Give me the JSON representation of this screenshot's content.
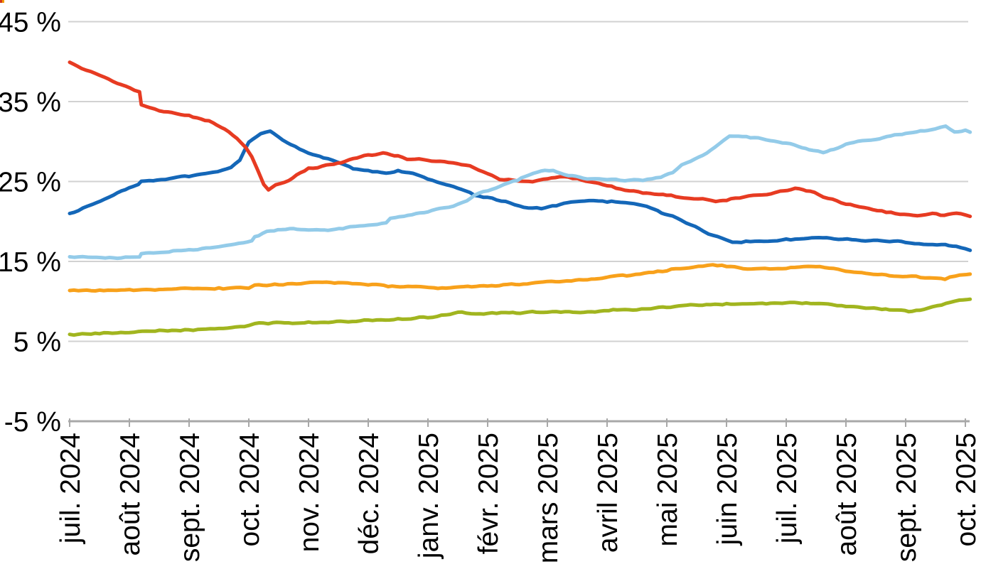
{
  "chart_data": {
    "type": "line",
    "title": "",
    "x_tick_labels": [
      "juil. 2024",
      "août 2024",
      "sept. 2024",
      "oct. 2024",
      "nov. 2024",
      "déc. 2024",
      "janv. 2025",
      "févr. 2025",
      "mars 2025",
      "avril 2025",
      "mai 2025",
      "juin 2025",
      "juil. 2025",
      "août 2025",
      "sept. 2025",
      "oct. 2025"
    ],
    "y_tick_labels": [
      "45 %",
      "35 %",
      "25 %",
      "15 %",
      "5 %",
      "-5 %"
    ],
    "y_tick_values": [
      45,
      35,
      25,
      15,
      5,
      -5
    ],
    "ylim": [
      -5,
      45
    ],
    "x_range_months": [
      0,
      15.08
    ],
    "grid": "horizontal-only",
    "legend_position": "none",
    "label_color": "#000000",
    "gridline_color": "#d2d2d2",
    "axis_color": "#a8a8a8",
    "background_color": "#ffffff",
    "series": [
      {
        "name": "series-olive-green",
        "color": "#a1b51f",
        "points": [
          [
            0,
            5.8
          ],
          [
            0.5,
            6.0
          ],
          [
            1.0,
            6.1
          ],
          [
            1.5,
            6.3
          ],
          [
            2.0,
            6.4
          ],
          [
            2.5,
            6.6
          ],
          [
            3.0,
            6.9
          ],
          [
            3.1,
            7.2
          ],
          [
            3.4,
            7.3
          ],
          [
            3.8,
            7.3
          ],
          [
            4.2,
            7.4
          ],
          [
            4.6,
            7.5
          ],
          [
            5.0,
            7.6
          ],
          [
            5.5,
            7.8
          ],
          [
            6.0,
            8.0
          ],
          [
            6.3,
            8.3
          ],
          [
            6.57,
            8.7
          ],
          [
            6.8,
            8.4
          ],
          [
            7.0,
            8.5
          ],
          [
            7.3,
            8.6
          ],
          [
            7.55,
            8.5
          ],
          [
            7.75,
            8.7
          ],
          [
            8.0,
            8.6
          ],
          [
            8.3,
            8.7
          ],
          [
            8.55,
            8.6
          ],
          [
            8.8,
            8.7
          ],
          [
            9.1,
            8.9
          ],
          [
            9.5,
            9.0
          ],
          [
            9.8,
            9.2
          ],
          [
            10.0,
            9.3
          ],
          [
            10.4,
            9.5
          ],
          [
            10.8,
            9.6
          ],
          [
            11.2,
            9.65
          ],
          [
            11.6,
            9.7
          ],
          [
            12.0,
            9.8
          ],
          [
            12.4,
            9.75
          ],
          [
            12.7,
            9.6
          ],
          [
            13.0,
            9.4
          ],
          [
            13.4,
            9.15
          ],
          [
            13.8,
            8.95
          ],
          [
            14.05,
            8.7
          ],
          [
            14.3,
            9.0
          ],
          [
            14.6,
            9.6
          ],
          [
            14.9,
            10.2
          ],
          [
            15.08,
            10.35
          ]
        ]
      },
      {
        "name": "series-orange",
        "color": "#f8a11b",
        "points": [
          [
            0,
            11.3
          ],
          [
            0.5,
            11.4
          ],
          [
            1.0,
            11.4
          ],
          [
            1.5,
            11.5
          ],
          [
            2.0,
            11.6
          ],
          [
            2.5,
            11.6
          ],
          [
            3.0,
            11.7
          ],
          [
            3.1,
            12.0
          ],
          [
            3.5,
            12.1
          ],
          [
            3.8,
            12.2
          ],
          [
            4.1,
            12.4
          ],
          [
            4.5,
            12.3
          ],
          [
            4.8,
            12.2
          ],
          [
            5.0,
            12.1
          ],
          [
            5.4,
            11.9
          ],
          [
            5.8,
            11.8
          ],
          [
            6.1,
            11.75
          ],
          [
            6.3,
            11.65
          ],
          [
            6.6,
            11.8
          ],
          [
            7.0,
            11.9
          ],
          [
            7.4,
            12.1
          ],
          [
            7.8,
            12.3
          ],
          [
            8.0,
            12.4
          ],
          [
            8.4,
            12.6
          ],
          [
            8.8,
            12.8
          ],
          [
            9.05,
            13.1
          ],
          [
            9.4,
            13.3
          ],
          [
            9.7,
            13.6
          ],
          [
            10.0,
            13.9
          ],
          [
            10.3,
            14.2
          ],
          [
            10.6,
            14.4
          ],
          [
            10.77,
            14.6
          ],
          [
            11.0,
            14.4
          ],
          [
            11.2,
            14.2
          ],
          [
            11.5,
            14.0
          ],
          [
            11.8,
            14.1
          ],
          [
            12.0,
            14.2
          ],
          [
            12.3,
            14.3
          ],
          [
            12.56,
            14.4
          ],
          [
            12.8,
            14.1
          ],
          [
            13.0,
            13.8
          ],
          [
            13.4,
            13.5
          ],
          [
            13.8,
            13.2
          ],
          [
            14.1,
            13.1
          ],
          [
            14.4,
            13.0
          ],
          [
            14.66,
            12.8
          ],
          [
            14.9,
            13.3
          ],
          [
            15.08,
            13.5
          ]
        ]
      },
      {
        "name": "series-dark-blue",
        "color": "#1467b8",
        "points": [
          [
            0,
            20.9
          ],
          [
            0.3,
            21.9
          ],
          [
            0.6,
            22.9
          ],
          [
            1.0,
            24.3
          ],
          [
            1.15,
            24.6
          ],
          [
            1.2,
            25.0
          ],
          [
            1.6,
            25.3
          ],
          [
            2.0,
            25.7
          ],
          [
            2.4,
            26.1
          ],
          [
            2.7,
            26.8
          ],
          [
            2.85,
            27.6
          ],
          [
            3.0,
            30.0
          ],
          [
            3.2,
            31.0
          ],
          [
            3.36,
            31.3
          ],
          [
            3.5,
            30.6
          ],
          [
            3.7,
            29.6
          ],
          [
            3.85,
            29.1
          ],
          [
            4.0,
            28.6
          ],
          [
            4.25,
            28.0
          ],
          [
            4.55,
            27.2
          ],
          [
            4.75,
            26.6
          ],
          [
            5.0,
            26.3
          ],
          [
            5.3,
            26.1
          ],
          [
            5.5,
            26.3
          ],
          [
            5.75,
            26.0
          ],
          [
            6.0,
            25.3
          ],
          [
            6.3,
            24.6
          ],
          [
            6.5,
            24.2
          ],
          [
            6.7,
            23.7
          ],
          [
            6.78,
            23.3
          ],
          [
            7.0,
            23.0
          ],
          [
            7.3,
            22.5
          ],
          [
            7.6,
            21.8
          ],
          [
            7.9,
            21.6
          ],
          [
            8.15,
            22.0
          ],
          [
            8.4,
            22.5
          ],
          [
            8.7,
            22.6
          ],
          [
            9.0,
            22.5
          ],
          [
            9.3,
            22.4
          ],
          [
            9.6,
            22.0
          ],
          [
            9.85,
            21.3
          ],
          [
            10.1,
            20.6
          ],
          [
            10.4,
            19.6
          ],
          [
            10.7,
            18.5
          ],
          [
            11.0,
            17.6
          ],
          [
            11.1,
            17.4
          ],
          [
            11.4,
            17.5
          ],
          [
            11.7,
            17.6
          ],
          [
            12.0,
            17.7
          ],
          [
            12.3,
            17.9
          ],
          [
            12.55,
            18.0
          ],
          [
            12.8,
            17.8
          ],
          [
            13.1,
            17.8
          ],
          [
            13.4,
            17.6
          ],
          [
            13.8,
            17.5
          ],
          [
            14.0,
            17.4
          ],
          [
            14.3,
            17.2
          ],
          [
            14.6,
            17.1
          ],
          [
            14.85,
            16.8
          ],
          [
            15.08,
            16.4
          ]
        ]
      },
      {
        "name": "series-red",
        "color": "#e73b22",
        "points": [
          [
            0,
            40.0
          ],
          [
            0.2,
            39.2
          ],
          [
            0.5,
            38.3
          ],
          [
            0.8,
            37.2
          ],
          [
            1.0,
            36.7
          ],
          [
            1.17,
            36.2
          ],
          [
            1.2,
            34.6
          ],
          [
            1.5,
            33.9
          ],
          [
            2.0,
            33.2
          ],
          [
            2.4,
            32.4
          ],
          [
            2.6,
            31.6
          ],
          [
            2.8,
            30.4
          ],
          [
            2.95,
            29.3
          ],
          [
            3.05,
            28.1
          ],
          [
            3.15,
            26.4
          ],
          [
            3.25,
            24.6
          ],
          [
            3.33,
            23.9
          ],
          [
            3.45,
            24.6
          ],
          [
            3.6,
            24.9
          ],
          [
            3.8,
            25.8
          ],
          [
            4.0,
            26.6
          ],
          [
            4.3,
            27.0
          ],
          [
            4.55,
            27.3
          ],
          [
            4.75,
            27.9
          ],
          [
            5.0,
            28.3
          ],
          [
            5.25,
            28.5
          ],
          [
            5.5,
            28.2
          ],
          [
            5.65,
            27.8
          ],
          [
            5.85,
            27.9
          ],
          [
            6.0,
            27.7
          ],
          [
            6.2,
            27.5
          ],
          [
            6.5,
            27.2
          ],
          [
            6.7,
            26.9
          ],
          [
            7.0,
            25.9
          ],
          [
            7.2,
            25.3
          ],
          [
            7.5,
            25.1
          ],
          [
            7.75,
            25.0
          ],
          [
            8.0,
            25.3
          ],
          [
            8.2,
            25.6
          ],
          [
            8.5,
            25.4
          ],
          [
            8.8,
            24.8
          ],
          [
            9.0,
            24.5
          ],
          [
            9.3,
            23.9
          ],
          [
            9.6,
            23.6
          ],
          [
            10.0,
            23.3
          ],
          [
            10.3,
            23.0
          ],
          [
            10.6,
            22.8
          ],
          [
            10.82,
            22.4
          ],
          [
            11.0,
            22.7
          ],
          [
            11.3,
            23.1
          ],
          [
            11.6,
            23.3
          ],
          [
            11.9,
            23.8
          ],
          [
            12.15,
            24.1
          ],
          [
            12.4,
            23.8
          ],
          [
            12.7,
            22.9
          ],
          [
            13.0,
            22.2
          ],
          [
            13.3,
            21.7
          ],
          [
            13.6,
            21.3
          ],
          [
            13.9,
            20.9
          ],
          [
            14.2,
            20.8
          ],
          [
            14.45,
            21.0
          ],
          [
            14.65,
            20.8
          ],
          [
            14.85,
            21.0
          ],
          [
            15.08,
            20.7
          ]
        ]
      },
      {
        "name": "series-light-blue",
        "color": "#93cbe9",
        "points": [
          [
            0,
            15.6
          ],
          [
            0.3,
            15.5
          ],
          [
            0.6,
            15.4
          ],
          [
            1.0,
            15.5
          ],
          [
            1.17,
            15.6
          ],
          [
            1.2,
            16.0
          ],
          [
            1.6,
            16.2
          ],
          [
            2.0,
            16.4
          ],
          [
            2.5,
            16.9
          ],
          [
            2.9,
            17.4
          ],
          [
            3.05,
            17.6
          ],
          [
            3.1,
            18.1
          ],
          [
            3.3,
            18.7
          ],
          [
            3.55,
            19.0
          ],
          [
            3.75,
            19.1
          ],
          [
            4.0,
            19.0
          ],
          [
            4.2,
            18.9
          ],
          [
            4.45,
            19.0
          ],
          [
            4.7,
            19.3
          ],
          [
            4.85,
            19.4
          ],
          [
            5.0,
            19.6
          ],
          [
            5.3,
            19.8
          ],
          [
            5.37,
            20.4
          ],
          [
            5.6,
            20.7
          ],
          [
            5.8,
            21.0
          ],
          [
            6.0,
            21.2
          ],
          [
            6.2,
            21.6
          ],
          [
            6.5,
            22.1
          ],
          [
            6.65,
            22.5
          ],
          [
            6.78,
            23.3
          ],
          [
            7.0,
            23.9
          ],
          [
            7.2,
            24.4
          ],
          [
            7.5,
            25.2
          ],
          [
            7.7,
            25.8
          ],
          [
            7.96,
            26.4
          ],
          [
            8.1,
            26.3
          ],
          [
            8.35,
            25.8
          ],
          [
            8.6,
            25.4
          ],
          [
            9.0,
            25.3
          ],
          [
            9.3,
            25.1
          ],
          [
            9.6,
            25.2
          ],
          [
            9.9,
            25.6
          ],
          [
            10.1,
            26.2
          ],
          [
            10.25,
            27.1
          ],
          [
            10.4,
            27.6
          ],
          [
            10.6,
            28.3
          ],
          [
            10.8,
            29.3
          ],
          [
            10.95,
            30.2
          ],
          [
            11.05,
            30.7
          ],
          [
            11.2,
            30.7
          ],
          [
            11.4,
            30.5
          ],
          [
            11.6,
            30.4
          ],
          [
            11.8,
            30.1
          ],
          [
            12.0,
            29.8
          ],
          [
            12.2,
            29.4
          ],
          [
            12.45,
            28.9
          ],
          [
            12.62,
            28.6
          ],
          [
            12.8,
            29.0
          ],
          [
            13.0,
            29.7
          ],
          [
            13.2,
            30.1
          ],
          [
            13.5,
            30.3
          ],
          [
            13.75,
            30.7
          ],
          [
            14.0,
            31.0
          ],
          [
            14.25,
            31.3
          ],
          [
            14.5,
            31.6
          ],
          [
            14.67,
            31.9
          ],
          [
            14.82,
            31.2
          ],
          [
            15.0,
            31.4
          ],
          [
            15.08,
            31.2
          ]
        ]
      }
    ]
  },
  "corner_artifact": {
    "colors": [
      "#d2381b",
      "#f09b07"
    ]
  }
}
